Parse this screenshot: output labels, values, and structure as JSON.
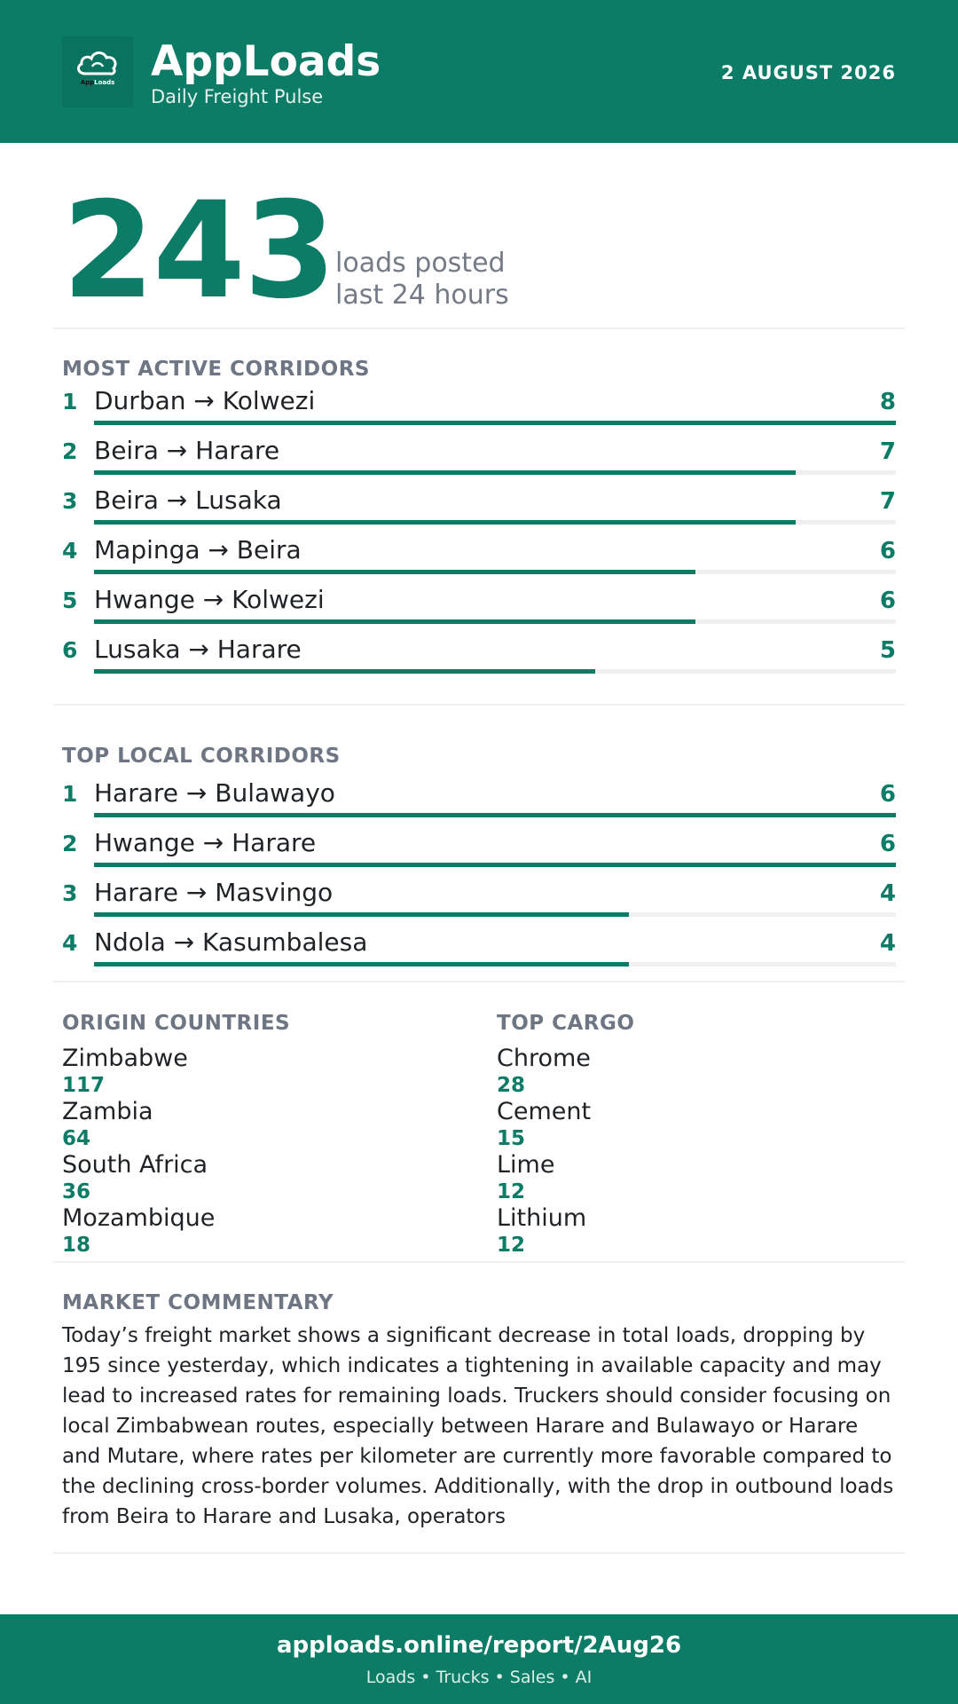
{
  "header": {
    "logo_text_a": "App",
    "logo_text_b": "Loads",
    "title": "AppLoads",
    "subtitle": "Daily Freight Pulse",
    "date": "2 AUGUST 2026"
  },
  "hero": {
    "value": "243",
    "label_line1": "loads posted",
    "label_line2": "last 24 hours"
  },
  "most_active": {
    "title": "MOST ACTIVE CORRIDORS",
    "max": 8,
    "items": [
      {
        "rank": "1",
        "route": "Durban → Kolwezi",
        "count": 8
      },
      {
        "rank": "2",
        "route": "Beira → Harare",
        "count": 7
      },
      {
        "rank": "3",
        "route": "Beira → Lusaka",
        "count": 7
      },
      {
        "rank": "4",
        "route": "Mapinga → Beira",
        "count": 6
      },
      {
        "rank": "5",
        "route": "Hwange → Kolwezi",
        "count": 6
      },
      {
        "rank": "6",
        "route": "Lusaka → Harare",
        "count": 5
      }
    ]
  },
  "top_local": {
    "title": "TOP LOCAL CORRIDORS",
    "max": 6,
    "items": [
      {
        "rank": "1",
        "route": "Harare → Bulawayo",
        "count": 6
      },
      {
        "rank": "2",
        "route": "Hwange → Harare",
        "count": 6
      },
      {
        "rank": "3",
        "route": "Harare → Masvingo",
        "count": 4
      },
      {
        "rank": "4",
        "route": "Ndola → Kasumbalesa",
        "count": 4
      }
    ]
  },
  "origin_countries": {
    "title": "ORIGIN COUNTRIES",
    "items": [
      {
        "name": "Zimbabwe",
        "value": "117"
      },
      {
        "name": "Zambia",
        "value": "64"
      },
      {
        "name": "South Africa",
        "value": "36"
      },
      {
        "name": "Mozambique",
        "value": "18"
      }
    ]
  },
  "top_cargo": {
    "title": "TOP CARGO",
    "items": [
      {
        "name": "Chrome",
        "value": "28"
      },
      {
        "name": "Cement",
        "value": "15"
      },
      {
        "name": "Lime",
        "value": "12"
      },
      {
        "name": "Lithium",
        "value": "12"
      }
    ]
  },
  "commentary": {
    "title": "MARKET COMMENTARY",
    "text": "Today’s freight market shows a significant decrease in total loads, dropping by 195 since yesterday, which indicates a tightening in available capacity and may lead to increased rates for remaining loads. Truckers should consider focusing on local Zimbabwean routes, especially between Harare and Bulawayo or Harare and Mutare, where rates per kilometer are currently more favorable compared to the declining cross-border volumes. Additionally, with the drop in outbound loads from Beira to Harare and Lusaka, operators"
  },
  "footer": {
    "url": "apploads.online/report/2Aug26",
    "tags": "Loads • Trucks • Sales • AI"
  },
  "colors": {
    "brand": "#0d7c66",
    "muted": "#6e7683",
    "track": "#eef0f1"
  }
}
